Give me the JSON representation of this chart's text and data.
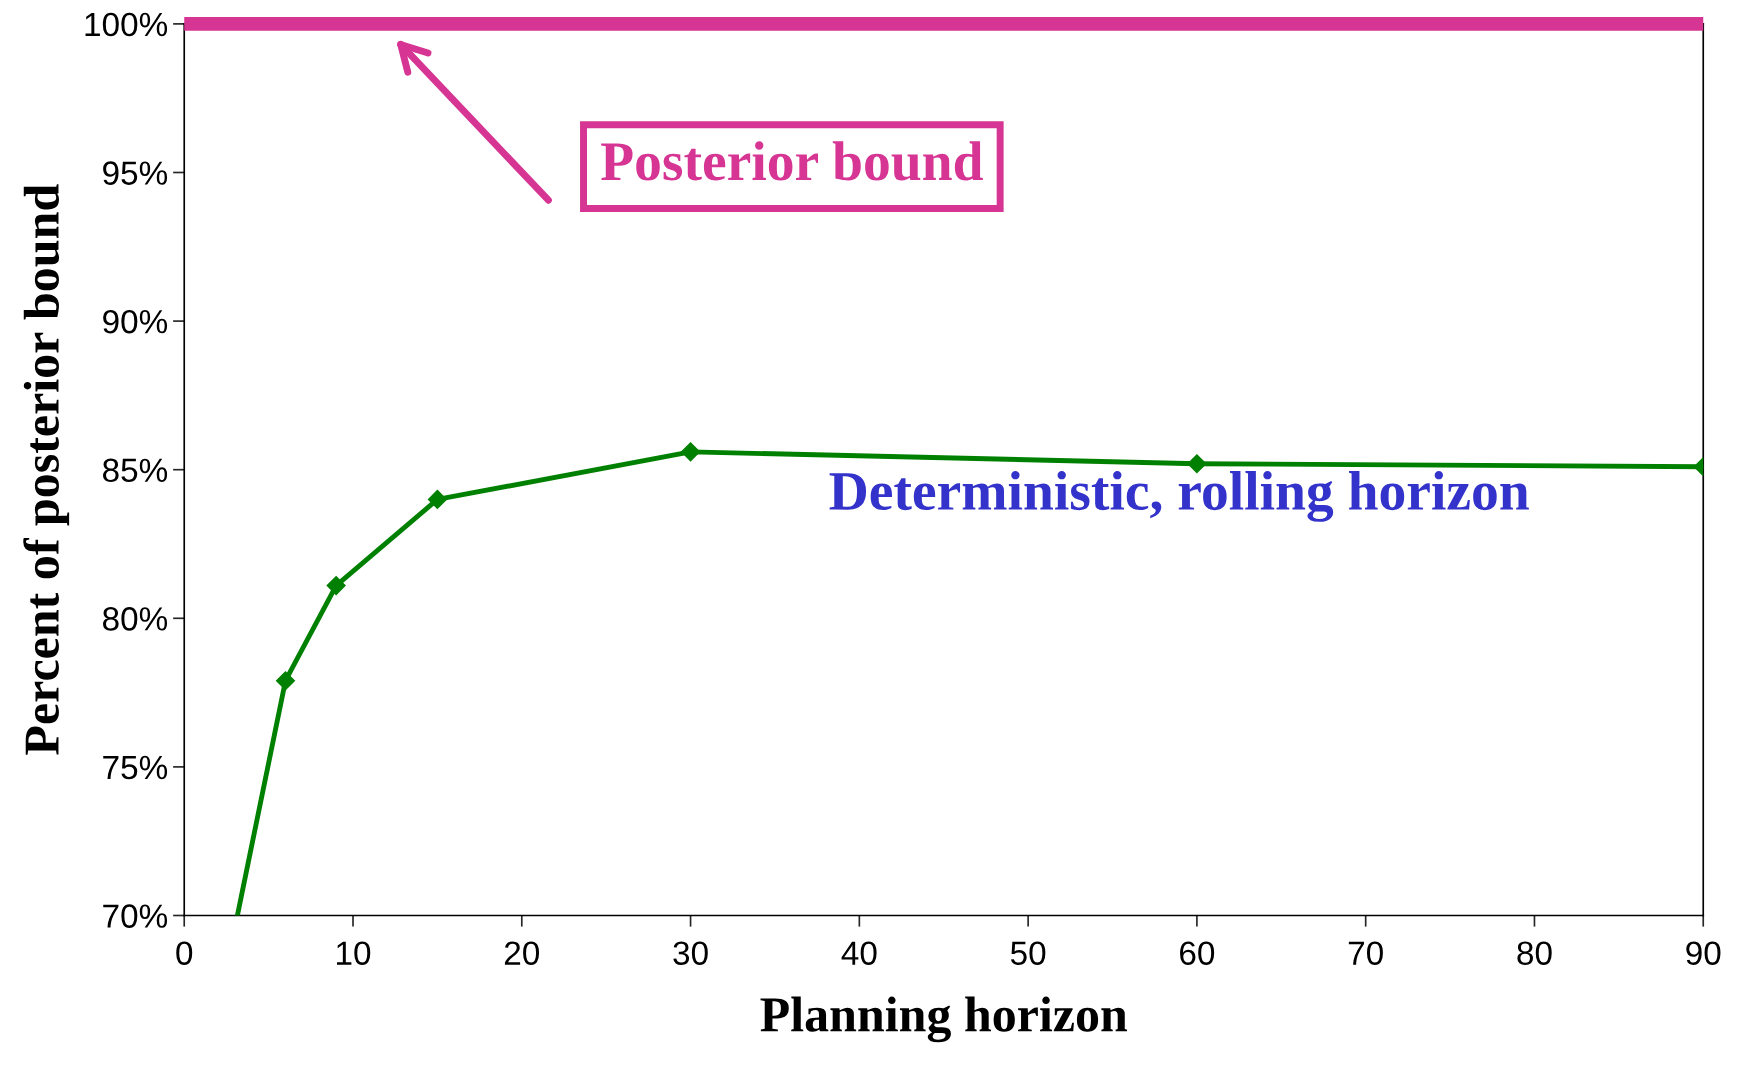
{
  "chart_data": {
    "type": "line",
    "xlabel": "Planning horizon",
    "ylabel": "Percent of posterior bound",
    "x": [
      3.15,
      6,
      9,
      15,
      30,
      60,
      90
    ],
    "series": [
      {
        "color": "#008000",
        "values": [
          70,
          77.9,
          81.1,
          84.0,
          85.6,
          85.2,
          85.1
        ]
      }
    ],
    "marker": "diamond",
    "line_style": "solid",
    "xlim": [
      0,
      90
    ],
    "xticks": [
      0,
      10,
      20,
      30,
      40,
      50,
      60,
      70,
      80,
      90
    ],
    "ylim": [
      70,
      100
    ],
    "yticks": [
      {
        "value": 70,
        "label": "70%"
      },
      {
        "value": 75,
        "label": "75%"
      },
      {
        "value": 80,
        "label": "80%"
      },
      {
        "value": 85,
        "label": "85%"
      },
      {
        "value": 90,
        "label": "90%"
      },
      {
        "value": 95,
        "label": "95%"
      },
      {
        "value": 100,
        "label": "100%"
      }
    ],
    "ref_lines": [
      {
        "axis": "y",
        "value": 100,
        "color": "#d63593"
      }
    ],
    "annotations": [
      "Posterior bound",
      "Deterministic, rolling horizon"
    ],
    "grid": false,
    "legend": false
  }
}
